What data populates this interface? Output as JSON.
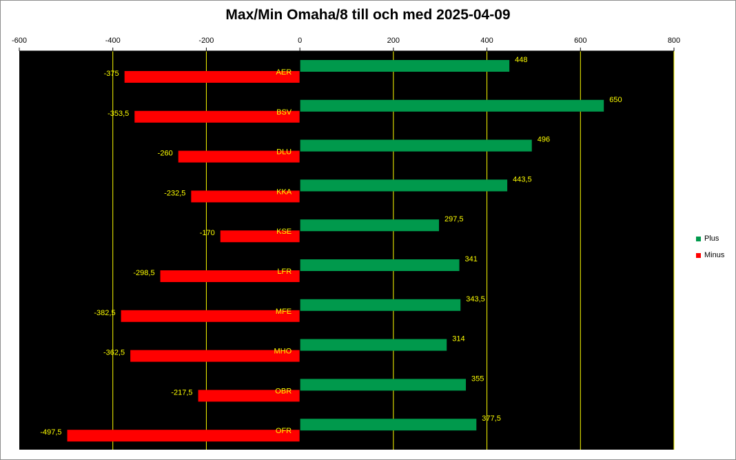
{
  "chart_data": {
    "type": "bar",
    "orientation": "horizontal",
    "title": "Max/Min Omaha/8 till och med 2025-04-09",
    "categories": [
      "AER",
      "BSV",
      "DLU",
      "KKA",
      "KSE",
      "LFR",
      "MFE",
      "MHO",
      "OBR",
      "OFR"
    ],
    "series": [
      {
        "name": "Plus",
        "color": "#00994c",
        "values": [
          448,
          650,
          496,
          443.5,
          297.5,
          341,
          343.5,
          314,
          355,
          377.5
        ],
        "labels": [
          "448",
          "650",
          "496",
          "443,5",
          "297,5",
          "341",
          "343,5",
          "314",
          "355",
          "377,5"
        ]
      },
      {
        "name": "Minus",
        "color": "#ff0000",
        "values": [
          -375,
          -353.5,
          -260,
          -232.5,
          -170,
          -298.5,
          -382.5,
          -362.5,
          -217.5,
          -497.5
        ],
        "labels": [
          "-375",
          "-353,5",
          "-260",
          "-232,5",
          "-170",
          "-298,5",
          "-382,5",
          "-362,5",
          "-217,5",
          "-497,5"
        ]
      }
    ],
    "xlim": [
      -600,
      800
    ],
    "x_ticks": [
      -600,
      -400,
      -200,
      0,
      200,
      400,
      600,
      800
    ],
    "x_tick_labels": [
      "-600",
      "-400",
      "-200",
      "0",
      "200",
      "400",
      "600",
      "800"
    ],
    "axis_position": "top",
    "gridlines": true,
    "gridline_color": "#ffff00",
    "plot_background": "#000000",
    "data_label_color": "#ffff00",
    "legend_position": "right"
  }
}
